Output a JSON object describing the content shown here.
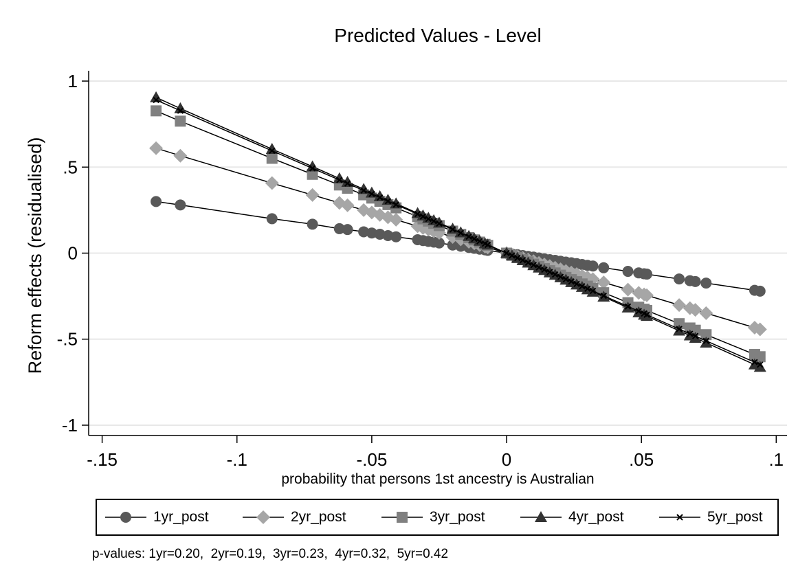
{
  "chart_data": {
    "type": "line",
    "title": "Predicted Values - Level",
    "xlabel": "probability that persons 1st ancestry is Australian",
    "ylabel": "Reform effects (residualised)",
    "xlim": [
      -0.155,
      0.104
    ],
    "ylim": [
      -1.06,
      1.06
    ],
    "xticks": [
      -0.15,
      -0.1,
      -0.05,
      0,
      0.05,
      0.1
    ],
    "xtick_labels": [
      "-.15",
      "-.1",
      "-.05",
      "0",
      ".05",
      ".1"
    ],
    "yticks": [
      -1,
      -0.5,
      0,
      0.5,
      1
    ],
    "ytick_labels": [
      "-1",
      "-.5",
      "0",
      ".5",
      "1"
    ],
    "grid": "horizontal",
    "legend_position": "bottom",
    "x": [
      -0.13,
      -0.121,
      -0.087,
      -0.072,
      -0.062,
      -0.059,
      -0.053,
      -0.05,
      -0.047,
      -0.044,
      -0.041,
      -0.033,
      -0.031,
      -0.029,
      -0.027,
      -0.025,
      -0.02,
      -0.017,
      -0.014,
      -0.012,
      -0.01,
      -0.008,
      -0.007,
      0.0,
      0.002,
      0.004,
      0.006,
      0.008,
      0.01,
      0.012,
      0.014,
      0.016,
      0.018,
      0.02,
      0.022,
      0.024,
      0.026,
      0.028,
      0.03,
      0.032,
      0.036,
      0.045,
      0.049,
      0.051,
      0.052,
      0.064,
      0.068,
      0.07,
      0.074,
      0.092,
      0.094
    ],
    "series": [
      {
        "name": "1yr_post",
        "marker": "circle",
        "color": "#595959",
        "values": [
          0.3,
          0.28,
          0.2,
          0.168,
          0.142,
          0.137,
          0.124,
          0.117,
          0.11,
          0.102,
          0.095,
          0.078,
          0.073,
          0.068,
          0.064,
          0.059,
          0.047,
          0.04,
          0.033,
          0.028,
          0.023,
          0.019,
          0.016,
          0.0,
          -0.005,
          -0.009,
          -0.014,
          -0.019,
          -0.023,
          -0.028,
          -0.033,
          -0.038,
          -0.042,
          -0.047,
          -0.052,
          -0.056,
          -0.061,
          -0.066,
          -0.071,
          -0.075,
          -0.085,
          -0.106,
          -0.115,
          -0.12,
          -0.122,
          -0.15,
          -0.16,
          -0.165,
          -0.174,
          -0.216,
          -0.221
        ]
      },
      {
        "name": "2yr_post",
        "marker": "diamond",
        "color": "#a6a6a6",
        "values": [
          0.61,
          0.566,
          0.407,
          0.338,
          0.292,
          0.278,
          0.25,
          0.236,
          0.222,
          0.208,
          0.194,
          0.156,
          0.146,
          0.137,
          0.127,
          0.118,
          0.094,
          0.08,
          0.066,
          0.057,
          0.047,
          0.038,
          0.033,
          0.0,
          -0.009,
          -0.019,
          -0.028,
          -0.038,
          -0.047,
          -0.057,
          -0.066,
          -0.075,
          -0.085,
          -0.094,
          -0.104,
          -0.113,
          -0.122,
          -0.132,
          -0.141,
          -0.151,
          -0.17,
          -0.212,
          -0.231,
          -0.24,
          -0.245,
          -0.302,
          -0.32,
          -0.33,
          -0.349,
          -0.433,
          -0.443
        ]
      },
      {
        "name": "3yr_post",
        "marker": "square",
        "color": "#808080",
        "values": [
          0.827,
          0.767,
          0.551,
          0.458,
          0.396,
          0.377,
          0.339,
          0.32,
          0.301,
          0.282,
          0.263,
          0.212,
          0.199,
          0.186,
          0.173,
          0.16,
          0.128,
          0.109,
          0.09,
          0.077,
          0.064,
          0.051,
          0.045,
          0.0,
          -0.013,
          -0.026,
          -0.038,
          -0.051,
          -0.064,
          -0.077,
          -0.09,
          -0.102,
          -0.115,
          -0.128,
          -0.141,
          -0.154,
          -0.166,
          -0.179,
          -0.192,
          -0.205,
          -0.23,
          -0.288,
          -0.314,
          -0.326,
          -0.333,
          -0.41,
          -0.435,
          -0.448,
          -0.474,
          -0.589,
          -0.602
        ]
      },
      {
        "name": "4yr_post",
        "marker": "triangle",
        "color": "#333333",
        "values": [
          0.905,
          0.841,
          0.605,
          0.503,
          0.434,
          0.413,
          0.372,
          0.351,
          0.33,
          0.309,
          0.288,
          0.232,
          0.218,
          0.204,
          0.19,
          0.176,
          0.141,
          0.12,
          0.099,
          0.085,
          0.071,
          0.056,
          0.049,
          0.0,
          -0.014,
          -0.028,
          -0.042,
          -0.056,
          -0.071,
          -0.085,
          -0.099,
          -0.113,
          -0.127,
          -0.141,
          -0.155,
          -0.169,
          -0.183,
          -0.197,
          -0.211,
          -0.225,
          -0.254,
          -0.317,
          -0.345,
          -0.359,
          -0.366,
          -0.451,
          -0.479,
          -0.493,
          -0.521,
          -0.648,
          -0.662
        ]
      },
      {
        "name": "5yr_post",
        "marker": "x",
        "color": "#000000",
        "values": [
          0.89,
          0.828,
          0.595,
          0.493,
          0.425,
          0.405,
          0.364,
          0.344,
          0.323,
          0.302,
          0.282,
          0.227,
          0.213,
          0.199,
          0.186,
          0.172,
          0.138,
          0.117,
          0.096,
          0.083,
          0.069,
          0.055,
          0.048,
          0.0,
          -0.014,
          -0.028,
          -0.041,
          -0.055,
          -0.069,
          -0.083,
          -0.096,
          -0.11,
          -0.124,
          -0.138,
          -0.152,
          -0.165,
          -0.179,
          -0.193,
          -0.207,
          -0.22,
          -0.248,
          -0.31,
          -0.337,
          -0.351,
          -0.358,
          -0.441,
          -0.469,
          -0.482,
          -0.51,
          -0.634,
          -0.648
        ]
      }
    ],
    "note": "p-values: 1yr=0.20,  2yr=0.19,  3yr=0.23,  4yr=0.32,  5yr=0.42"
  }
}
